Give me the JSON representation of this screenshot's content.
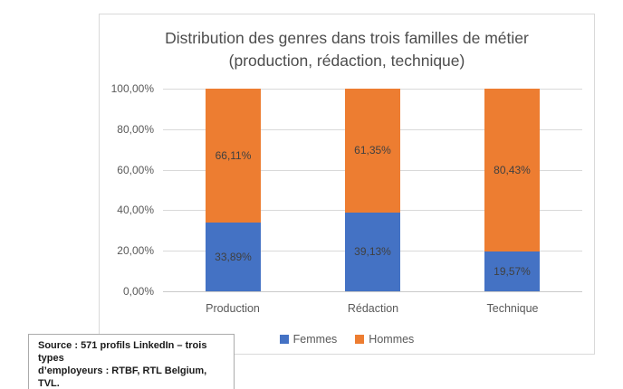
{
  "chart_data": {
    "type": "bar",
    "subtype": "stacked-100-percent",
    "title": "Distribution des genres dans trois familles de métier (production, rédaction, technique)",
    "categories": [
      "Production",
      "Rédaction",
      "Technique"
    ],
    "series": [
      {
        "name": "Femmes",
        "color": "#4472C4",
        "values": [
          33.89,
          39.13,
          19.57
        ],
        "value_labels": [
          "33,89%",
          "39,13%",
          "19,57%"
        ]
      },
      {
        "name": "Hommes",
        "color": "#ED7D31",
        "values": [
          66.11,
          61.35,
          80.43
        ],
        "value_labels": [
          "66,11%",
          "61,35%",
          "80,43%"
        ]
      }
    ],
    "y_axis": {
      "min": 0,
      "max": 100,
      "ticks": [
        {
          "value": 0,
          "label": "0,00%"
        },
        {
          "value": 20,
          "label": "20,00%"
        },
        {
          "value": 40,
          "label": "40,00%"
        },
        {
          "value": 60,
          "label": "60,00%"
        },
        {
          "value": 80,
          "label": "80,00%"
        },
        {
          "value": 100,
          "label": "100,00%"
        }
      ]
    },
    "grid": true,
    "legend_position": "bottom"
  },
  "source_note": {
    "lines": [
      "Source : 571 profils LinkedIn – trois types",
      "d’employeurs : RTBF, RTL Belgium, TVL."
    ]
  }
}
